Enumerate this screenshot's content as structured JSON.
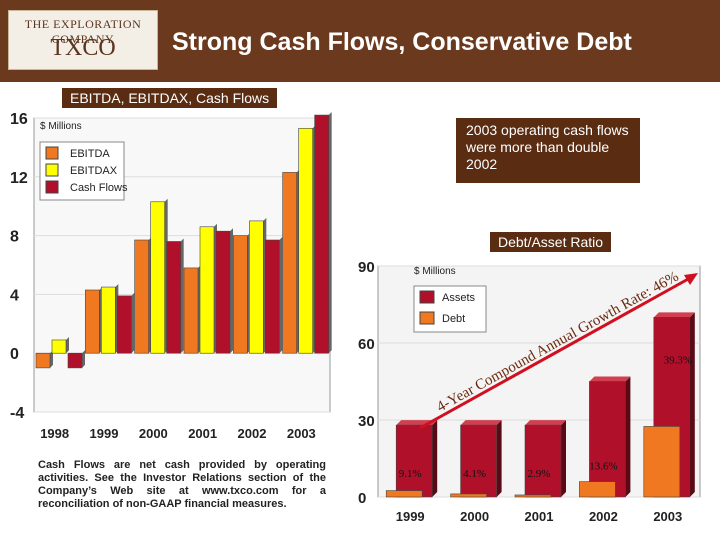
{
  "header": {
    "logo_line1": "THE EXPLORATION COMPANY",
    "logo_line2": "TXCO",
    "title": "Strong Cash Flows, Conservative Debt"
  },
  "section_label": "EBITDA, EBITDAX, Cash Flows",
  "note": "2003 operating cash flows were more than double 2002",
  "ratio_label": "Debt/Asset Ratio",
  "footnote": "Cash Flows are net cash provided by operating activities. See the Investor Relations section of the Company’s Web site at www.txco.com for a reconciliation of non-GAAP financial measures.",
  "colors": {
    "header_bg": "#6b3a1e",
    "label_bg": "#5a2d12",
    "ebitda": "#f07820",
    "ebitdax": "#ffff00",
    "cashflows": "#b0102a",
    "arrow": "#d01020"
  },
  "chart_data": [
    {
      "type": "bar",
      "unit_label": "$ Millions",
      "categories": [
        "1998",
        "1999",
        "2000",
        "2001",
        "2002",
        "2003"
      ],
      "series": [
        {
          "name": "EBITDA",
          "values": [
            -1.0,
            4.3,
            7.7,
            5.8,
            8.0,
            12.3
          ]
        },
        {
          "name": "EBITDAX",
          "values": [
            0.9,
            4.5,
            10.3,
            8.6,
            9.0,
            15.3
          ]
        },
        {
          "name": "Cash Flows",
          "values": [
            -1.0,
            3.9,
            7.6,
            8.3,
            7.7,
            16.2
          ]
        }
      ],
      "yticks": [
        "16",
        "12",
        "8",
        "4",
        "0",
        "-4"
      ],
      "ylim": [
        -4,
        16
      ],
      "legend": "top-left"
    },
    {
      "type": "bar",
      "unit_label": "$ Millions",
      "categories": [
        "1999",
        "2000",
        "2001",
        "2002",
        "2003"
      ],
      "series": [
        {
          "name": "Assets",
          "values": [
            28,
            28,
            28,
            45,
            70
          ]
        },
        {
          "name": "Debt",
          "values": [
            2.5,
            1.2,
            0.8,
            6.0,
            27.5
          ]
        }
      ],
      "ratio_labels": [
        "9.1%",
        "4.1%",
        "2.9%",
        "13.6%",
        "39.3%"
      ],
      "yticks": [
        "90",
        "60",
        "30",
        "0"
      ],
      "ylim": [
        0,
        90
      ],
      "annotation": "4-Year Compound Annual Growth Rate: 46%",
      "legend": "top-left"
    }
  ]
}
